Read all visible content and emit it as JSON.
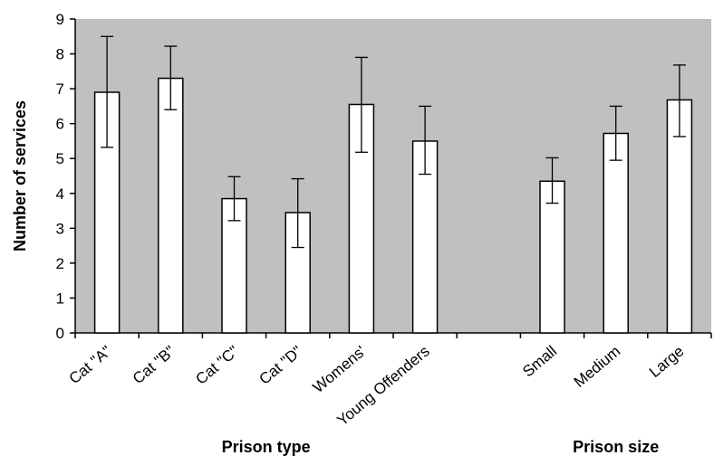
{
  "chart_data": {
    "type": "bar",
    "ylabel": "Number of services",
    "ylim": [
      0,
      9
    ],
    "yticks": [
      "0",
      "1",
      "2",
      "3",
      "4",
      "5",
      "6",
      "7",
      "8",
      "9"
    ],
    "grid": false,
    "legend": "none",
    "colors": {
      "plot_background": "#c0c0c0",
      "bar_fill": "#ffffff",
      "bar_stroke": "#000000"
    },
    "groups": [
      {
        "label": "Prison type",
        "categories": [
          "Cat \"A\"",
          "Cat \"B\"",
          "Cat \"C\"",
          "Cat \"D\"",
          "Womens'",
          "Young Offenders"
        ]
      },
      {
        "label": "Prison size",
        "categories": [
          "Small",
          "Medium",
          "Large"
        ]
      }
    ],
    "categories": [
      "Cat \"A\"",
      "Cat \"B\"",
      "Cat \"C\"",
      "Cat \"D\"",
      "Womens'",
      "Young Offenders",
      "",
      "Small",
      "Medium",
      "Large"
    ],
    "values": [
      6.9,
      7.3,
      3.85,
      3.45,
      6.55,
      5.5,
      null,
      4.35,
      5.72,
      6.68
    ],
    "error_low": [
      5.32,
      6.4,
      3.22,
      2.45,
      5.18,
      4.55,
      null,
      3.72,
      4.95,
      5.63
    ],
    "error_high": [
      8.5,
      8.22,
      4.48,
      4.42,
      7.9,
      6.5,
      null,
      5.02,
      6.5,
      7.68
    ]
  }
}
